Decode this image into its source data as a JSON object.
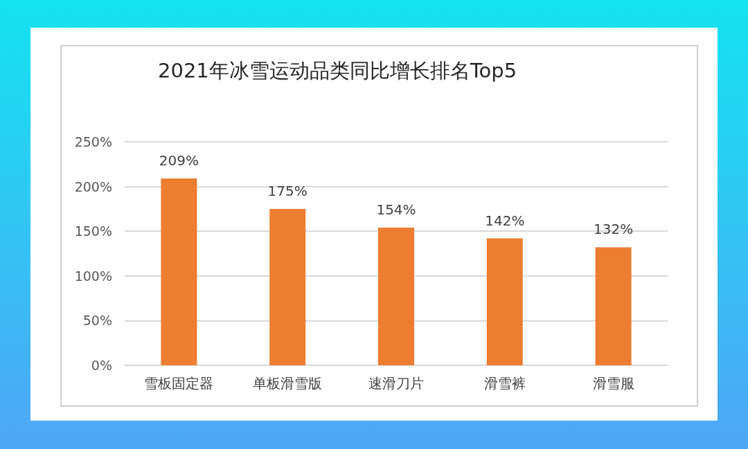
{
  "chart_data": {
    "type": "bar",
    "title": "2021年冰雪运动品类同比增长排名Top5",
    "categories": [
      "雪板固定器",
      "单板滑雪版",
      "速滑刀片",
      "滑雪裤",
      "滑雪服"
    ],
    "values": [
      209,
      175,
      154,
      142,
      132
    ],
    "value_labels": [
      "209%",
      "175%",
      "154%",
      "142%",
      "132%"
    ],
    "color": "#ed7d31",
    "ylim": [
      0,
      250
    ],
    "yticks": [
      {
        "value": 0,
        "label": "0%"
      },
      {
        "value": 50,
        "label": "50%"
      },
      {
        "value": 100,
        "label": "100%"
      },
      {
        "value": 150,
        "label": "150%"
      },
      {
        "value": 200,
        "label": "200%"
      },
      {
        "value": 250,
        "label": "250%"
      }
    ],
    "grid": "y"
  }
}
